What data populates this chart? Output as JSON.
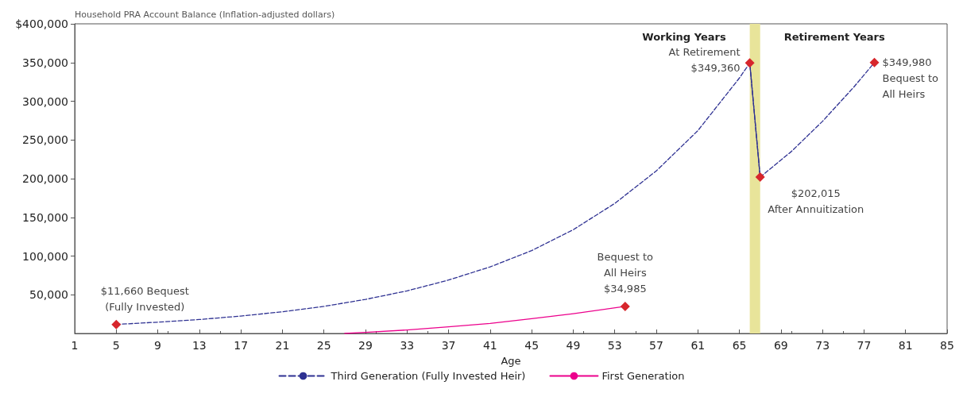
{
  "chart_data": {
    "type": "line",
    "ylabel": "Household PRA Account Balance (Inflation-adjusted dollars)",
    "xlabel": "Age",
    "xlim": [
      1,
      85
    ],
    "xticks": [
      1,
      5,
      9,
      13,
      17,
      21,
      25,
      29,
      33,
      37,
      41,
      45,
      49,
      53,
      57,
      61,
      65,
      69,
      73,
      77,
      81,
      85
    ],
    "ylim": [
      0,
      400000
    ],
    "yticks": [
      {
        "value": 50000,
        "label": "50,000"
      },
      {
        "value": 100000,
        "label": "100,000"
      },
      {
        "value": 150000,
        "label": "150,000"
      },
      {
        "value": 200000,
        "label": "200,000"
      },
      {
        "value": 250000,
        "label": "250,000"
      },
      {
        "value": 300000,
        "label": "300,000"
      },
      {
        "value": 350000,
        "label": "350,000"
      },
      {
        "value": 400000,
        "label": "$400,000"
      }
    ],
    "grid": false,
    "legend": "bottom",
    "marker": "none",
    "series": [
      {
        "name": "Third Generation (Fully Invested Heir)",
        "color": "#2e3192",
        "line_style": "dashed",
        "x": [
          5,
          9,
          13,
          17,
          21,
          25,
          29,
          33,
          37,
          41,
          45,
          49,
          53,
          57,
          61,
          65,
          66,
          67,
          70,
          73,
          76,
          78
        ],
        "values": [
          11660,
          14600,
          18000,
          22500,
          28000,
          35000,
          44000,
          55000,
          69000,
          86000,
          107000,
          134000,
          168000,
          210000,
          262000,
          330000,
          349360,
          202015,
          235000,
          274000,
          318000,
          349980
        ]
      },
      {
        "color": "#2e3192",
        "line_style": "solid",
        "x": [
          66,
          67
        ],
        "values": [
          349360,
          202015
        ]
      },
      {
        "name": "First Generation",
        "color": "#ec008c",
        "line_style": "solid",
        "x": [
          27,
          29,
          33,
          37,
          41,
          45,
          49,
          54
        ],
        "values": [
          0,
          1500,
          4500,
          8500,
          13000,
          19000,
          25500,
          34985
        ]
      },
      {
        "type": "scatter",
        "marker": "diamond",
        "color": "#d7262c",
        "x": [
          5,
          54,
          66,
          67,
          78
        ],
        "values": [
          11660,
          34985,
          349360,
          202015,
          349980
        ]
      }
    ],
    "bands": [
      {
        "axis": "x",
        "from": 66,
        "to": 67,
        "color": "#e8e49a"
      }
    ],
    "annotations": [
      {
        "text": "$11,660 Bequest\n(Fully Invested)",
        "x": 5,
        "y": 11660
      },
      {
        "text": "Bequest to\nAll Heirs\n$34,985",
        "x": 54,
        "y": 34985
      },
      {
        "text": "At Retirement\n$349,360",
        "x": 66,
        "y": 349360
      },
      {
        "text": "$202,015\nAfter Annuitization",
        "x": 67,
        "y": 202015
      },
      {
        "text": "$349,980\nBequest to\nAll Heirs",
        "x": 78,
        "y": 349980
      },
      "Working Years",
      "Retirement Years"
    ]
  }
}
